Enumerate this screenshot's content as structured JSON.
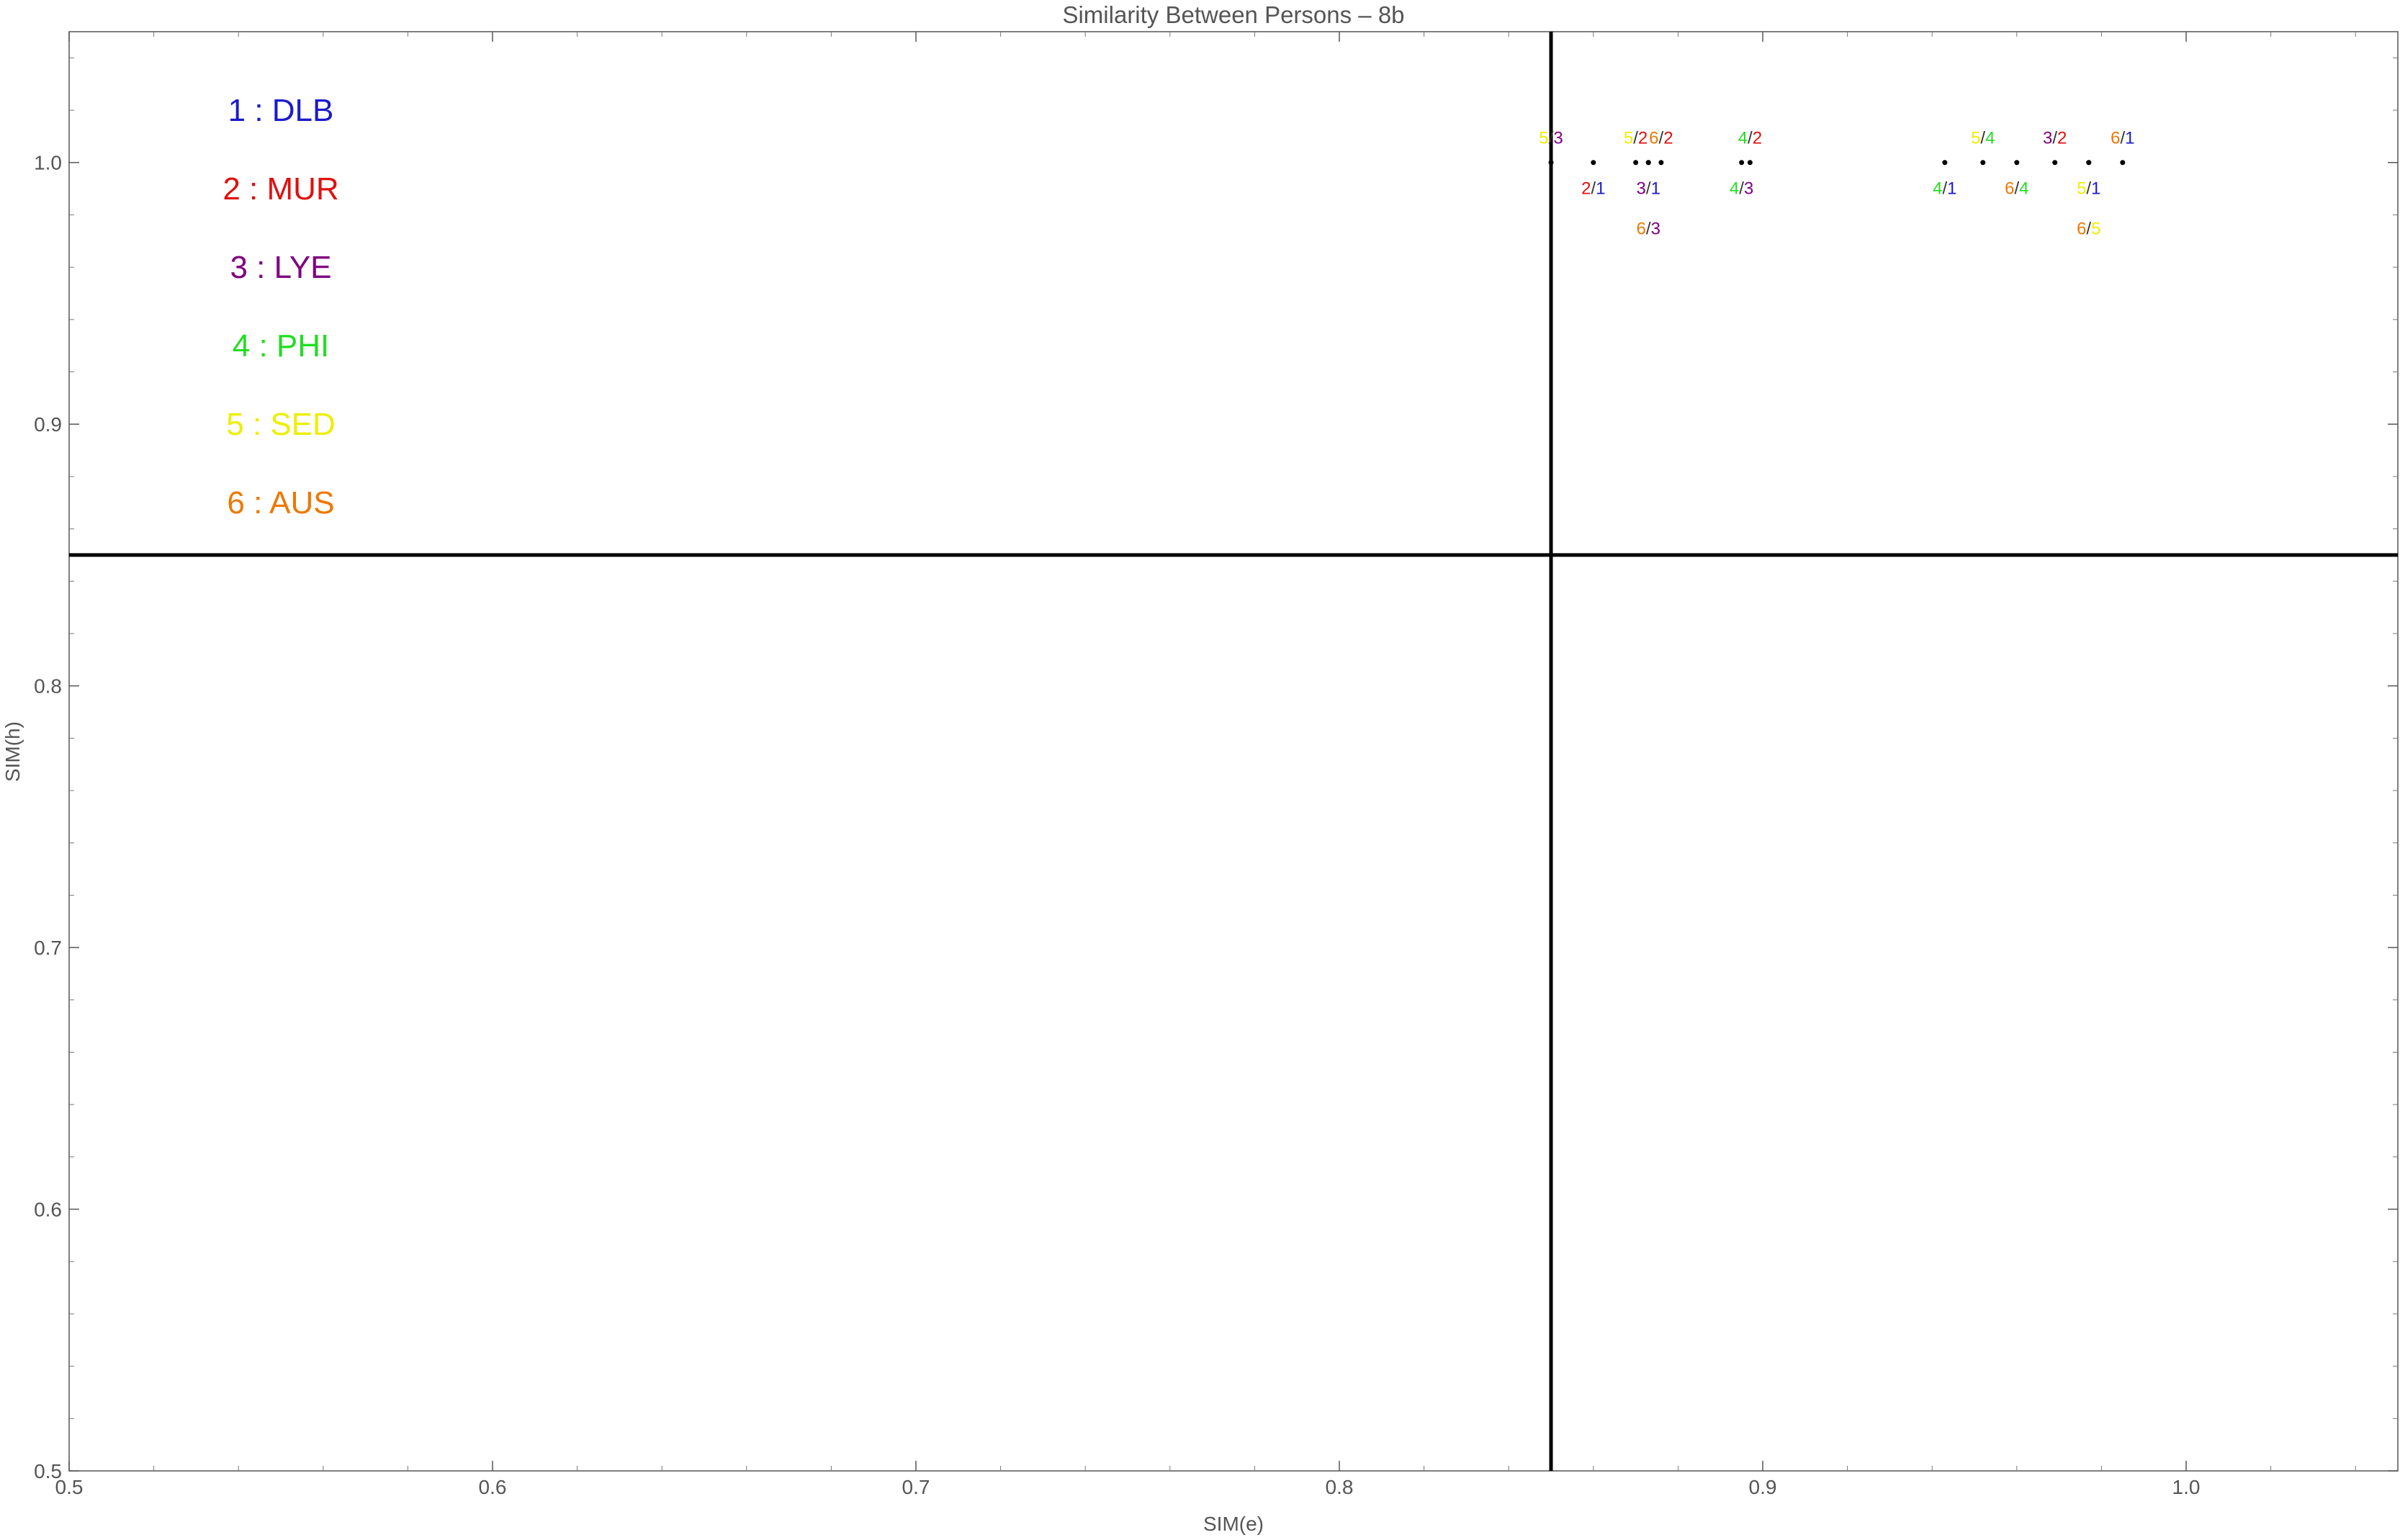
{
  "chart_data": {
    "type": "scatter",
    "title": "Similarity Between Persons – 8b",
    "xlabel": "SIM(e)",
    "ylabel": "SIM(h)",
    "xlim": [
      0.5,
      1.05
    ],
    "ylim": [
      0.5,
      1.05
    ],
    "x_ticks": [
      {
        "value": 0.5,
        "label": "0.5"
      },
      {
        "value": 0.6,
        "label": "0.6"
      },
      {
        "value": 0.7,
        "label": "0.7"
      },
      {
        "value": 0.8,
        "label": "0.8"
      },
      {
        "value": 0.9,
        "label": "0.9"
      },
      {
        "value": 1.0,
        "label": "1.0"
      }
    ],
    "y_ticks": [
      {
        "value": 0.5,
        "label": "0.5"
      },
      {
        "value": 0.6,
        "label": "0.6"
      },
      {
        "value": 0.7,
        "label": "0.7"
      },
      {
        "value": 0.8,
        "label": "0.8"
      },
      {
        "value": 0.9,
        "label": "0.9"
      },
      {
        "value": 1.0,
        "label": "1.0"
      }
    ],
    "reference_lines": {
      "x": 0.85,
      "y": 0.85
    },
    "grid": false,
    "legend_placement": "top-left",
    "legend": [
      {
        "id": 1,
        "label": "1 : DLB",
        "color": "#1a1acc"
      },
      {
        "id": 2,
        "label": "2 : MUR",
        "color": "#e01010"
      },
      {
        "id": 3,
        "label": "3 : LYE",
        "color": "#800080"
      },
      {
        "id": 4,
        "label": "4 : PHI",
        "color": "#22dd22"
      },
      {
        "id": 5,
        "label": "5 : SED",
        "color": "#eeee00"
      },
      {
        "id": 6,
        "label": "6 : AUS",
        "color": "#ee7700"
      }
    ],
    "points": [
      {
        "a": 5,
        "b": 3,
        "x": 0.85,
        "y": 1.0,
        "label_pos": "above"
      },
      {
        "a": 2,
        "b": 1,
        "x": 0.86,
        "y": 1.0,
        "label_pos": "below"
      },
      {
        "a": 5,
        "b": 2,
        "x": 0.87,
        "y": 1.0,
        "label_pos": "above"
      },
      {
        "a": 3,
        "b": 1,
        "x": 0.873,
        "y": 1.0,
        "label_pos": "below"
      },
      {
        "a": 6,
        "b": 2,
        "x": 0.876,
        "y": 1.0,
        "label_pos": "above"
      },
      {
        "a": 6,
        "b": 3,
        "x": 0.873,
        "y": 1.0,
        "label_pos": "below2"
      },
      {
        "a": 4,
        "b": 3,
        "x": 0.895,
        "y": 1.0,
        "label_pos": "below"
      },
      {
        "a": 4,
        "b": 2,
        "x": 0.897,
        "y": 1.0,
        "label_pos": "above"
      },
      {
        "a": 4,
        "b": 1,
        "x": 0.943,
        "y": 1.0,
        "label_pos": "below"
      },
      {
        "a": 5,
        "b": 4,
        "x": 0.952,
        "y": 1.0,
        "label_pos": "above"
      },
      {
        "a": 6,
        "b": 4,
        "x": 0.96,
        "y": 1.0,
        "label_pos": "below"
      },
      {
        "a": 3,
        "b": 2,
        "x": 0.969,
        "y": 1.0,
        "label_pos": "above"
      },
      {
        "a": 5,
        "b": 1,
        "x": 0.977,
        "y": 1.0,
        "label_pos": "below"
      },
      {
        "a": 6,
        "b": 5,
        "x": 0.977,
        "y": 1.0,
        "label_pos": "below2"
      },
      {
        "a": 6,
        "b": 1,
        "x": 0.985,
        "y": 1.0,
        "label_pos": "above"
      }
    ]
  }
}
